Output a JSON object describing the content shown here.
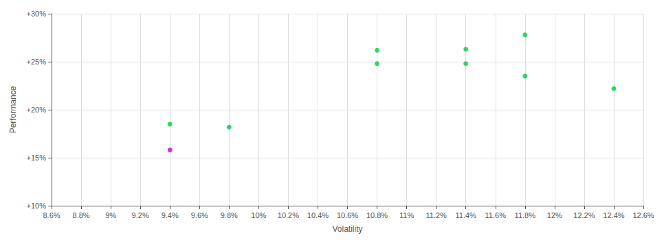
{
  "chart_data": {
    "type": "scatter",
    "xlabel": "Volatility",
    "ylabel": "Performance",
    "xlim": [
      0.086,
      0.126
    ],
    "ylim": [
      0.1,
      0.3
    ],
    "xticks": [
      {
        "value": 0.086,
        "label": "8.6%"
      },
      {
        "value": 0.088,
        "label": "8.8%"
      },
      {
        "value": 0.09,
        "label": "9%"
      },
      {
        "value": 0.092,
        "label": "9.2%"
      },
      {
        "value": 0.094,
        "label": "9.4%"
      },
      {
        "value": 0.096,
        "label": "9.6%"
      },
      {
        "value": 0.098,
        "label": "9.8%"
      },
      {
        "value": 0.1,
        "label": "10%"
      },
      {
        "value": 0.102,
        "label": "10.2%"
      },
      {
        "value": 0.104,
        "label": "10.4%"
      },
      {
        "value": 0.106,
        "label": "10.6%"
      },
      {
        "value": 0.108,
        "label": "10.8%"
      },
      {
        "value": 0.11,
        "label": "11%"
      },
      {
        "value": 0.112,
        "label": "11.2%"
      },
      {
        "value": 0.114,
        "label": "11.4%"
      },
      {
        "value": 0.116,
        "label": "11.6%"
      },
      {
        "value": 0.118,
        "label": "11.8%"
      },
      {
        "value": 0.12,
        "label": "12%"
      },
      {
        "value": 0.122,
        "label": "12.2%"
      },
      {
        "value": 0.124,
        "label": "12.4%"
      },
      {
        "value": 0.126,
        "label": "12.6%"
      }
    ],
    "yticks": [
      {
        "value": 0.1,
        "label": "+10%"
      },
      {
        "value": 0.15,
        "label": "+15%"
      },
      {
        "value": 0.2,
        "label": "+20%"
      },
      {
        "value": 0.25,
        "label": "+25%"
      },
      {
        "value": 0.3,
        "label": "+30%"
      }
    ],
    "grid": true,
    "series": [
      {
        "color": "#00cc44",
        "x": [
          0.094,
          0.098,
          0.108,
          0.108,
          0.114,
          0.114,
          0.118,
          0.118,
          0.124
        ],
        "values": [
          0.185,
          0.182,
          0.262,
          0.248,
          0.263,
          0.248,
          0.278,
          0.235,
          0.222
        ]
      },
      {
        "color": "#cc00cc",
        "x": [
          0.094
        ],
        "values": [
          0.158
        ]
      }
    ]
  }
}
